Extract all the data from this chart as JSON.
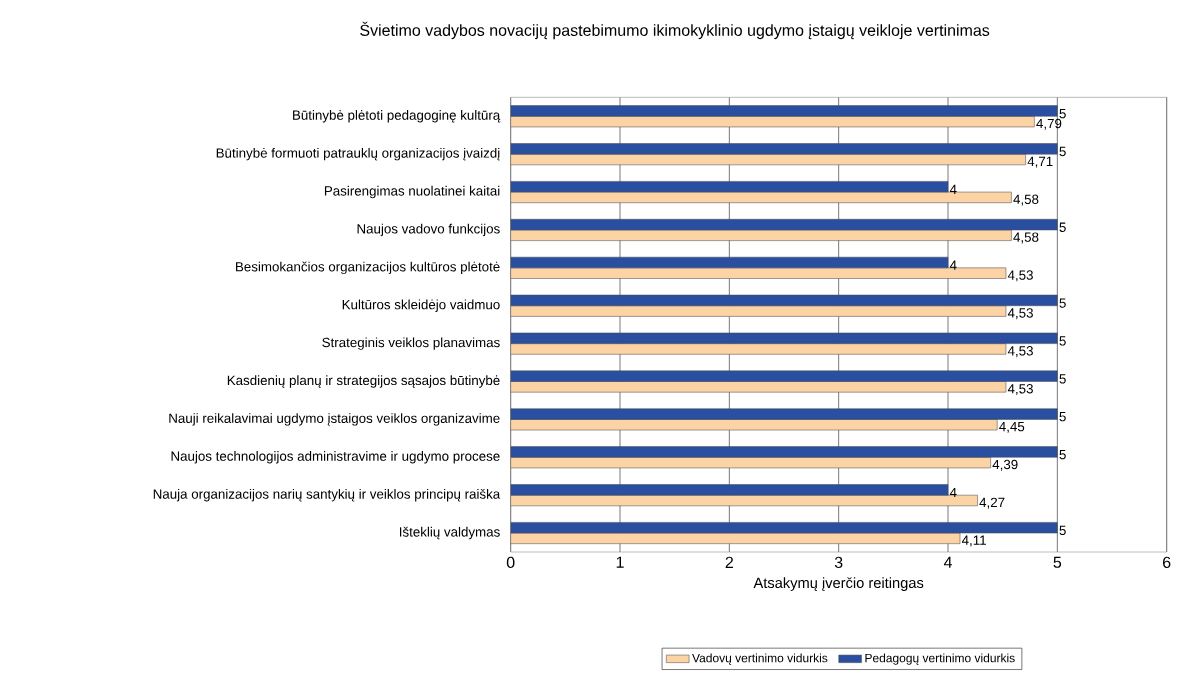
{
  "chart_data": {
    "type": "bar",
    "orientation": "horizontal",
    "title": "Švietimo vadybos novacijų pastebimumo ikimokyklinio ugdymo įstaigų veikloje vertinimas",
    "xlabel": "Atsakymų įverčio reitingas",
    "categories": [
      "Būtinybė plėtoti pedagoginę kultūrą",
      "Būtinybė formuoti patrauklų organizacijos įvaizdį",
      "Pasirengimas nuolatinei kaitai",
      "Naujos vadovo funkcijos",
      "Besimokančios organizacijos kultūros plėtotė",
      "Kultūros skleidėjo vaidmuo",
      "Strateginis veiklos planavimas",
      "Kasdienių planų ir strategijos sąsajos būtinybė",
      "Nauji reikalavimai ugdymo įstaigos veiklos organizavime",
      "Naujos technologijos administravime ir ugdymo procese",
      "Nauja organizacijos narių santykių ir veiklos principų raiška",
      "Išteklių valdymas"
    ],
    "series": [
      {
        "name": "Vadovų vertinimo vidurkis",
        "color": "#fcd3a5",
        "values": [
          4.79,
          4.71,
          4.58,
          4.58,
          4.53,
          4.53,
          4.53,
          4.53,
          4.45,
          4.39,
          4.27,
          4.11
        ],
        "value_labels": [
          "4,79",
          "4,71",
          "4,58",
          "4,58",
          "4,53",
          "4,53",
          "4,53",
          "4,53",
          "4,45",
          "4,39",
          "4,27",
          "4,11"
        ]
      },
      {
        "name": "Pedagogų vertinimo vidurkis",
        "color": "#2a4fa0",
        "values": [
          5,
          5,
          4,
          5,
          4,
          5,
          5,
          5,
          5,
          5,
          4,
          5
        ],
        "value_labels": [
          "5",
          "5",
          "4",
          "5",
          "4",
          "5",
          "5",
          "5",
          "5",
          "5",
          "4",
          "5"
        ]
      }
    ],
    "xlim": [
      0,
      6
    ],
    "xticks": [
      0,
      1,
      2,
      3,
      4,
      5,
      6
    ],
    "grid": "x",
    "legend": "bottom"
  }
}
